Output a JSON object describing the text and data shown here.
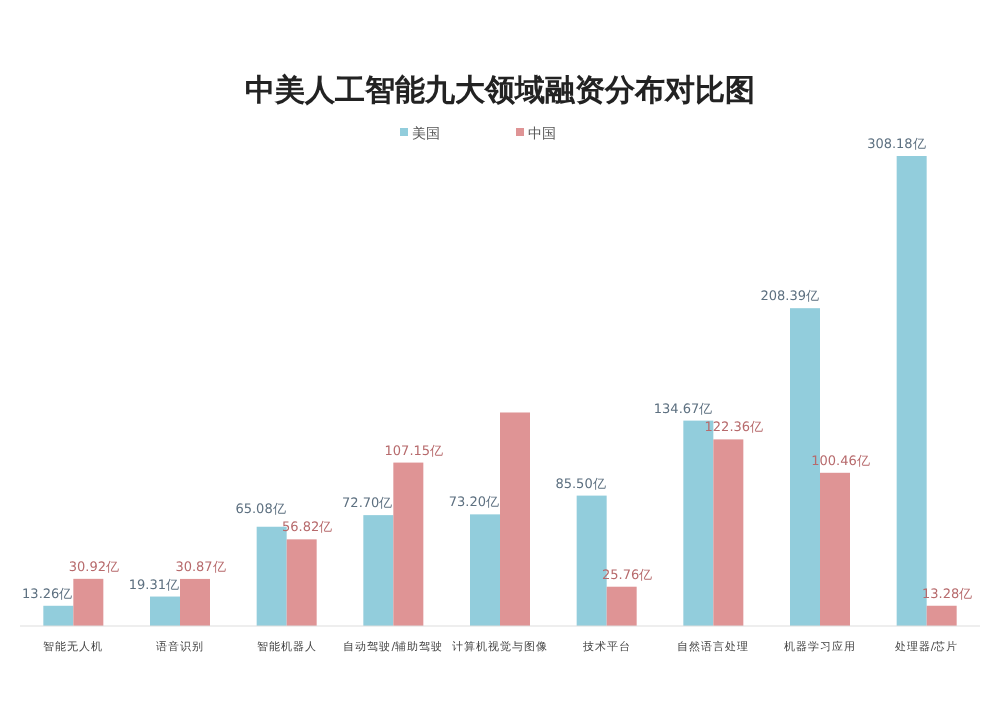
{
  "chart_data": {
    "type": "bar",
    "title": "中美人工智能九大领域融资分布对比图",
    "categories": [
      "智能无人机",
      "语音识别",
      "智能机器人",
      "自动驾驶/辅助驾驶",
      "计算机视觉与图像",
      "技术平台",
      "自然语言处理",
      "机器学习应用",
      "处理器/芯片"
    ],
    "series": [
      {
        "name": "美国",
        "color": "#92cddc",
        "values": [
          13.26,
          19.31,
          65.08,
          72.7,
          73.2,
          85.5,
          134.67,
          208.39,
          308.18
        ],
        "value_labels": [
          "13.26亿",
          "19.31亿",
          "65.08亿",
          "72.70亿",
          "73.20亿",
          "85.50亿",
          "134.67亿",
          "208.39亿",
          "308.18亿"
        ]
      },
      {
        "name": "中国",
        "color": "#df9495",
        "values": [
          30.92,
          30.87,
          56.82,
          107.15,
          140,
          25.76,
          122.36,
          100.46,
          13.28
        ],
        "value_labels": [
          "30.92亿",
          "30.87亿",
          "56.82亿",
          "107.15亿",
          null,
          "25.76亿",
          "122.36亿",
          "100.46亿",
          "13.28亿"
        ]
      }
    ],
    "legend": "top"
  }
}
